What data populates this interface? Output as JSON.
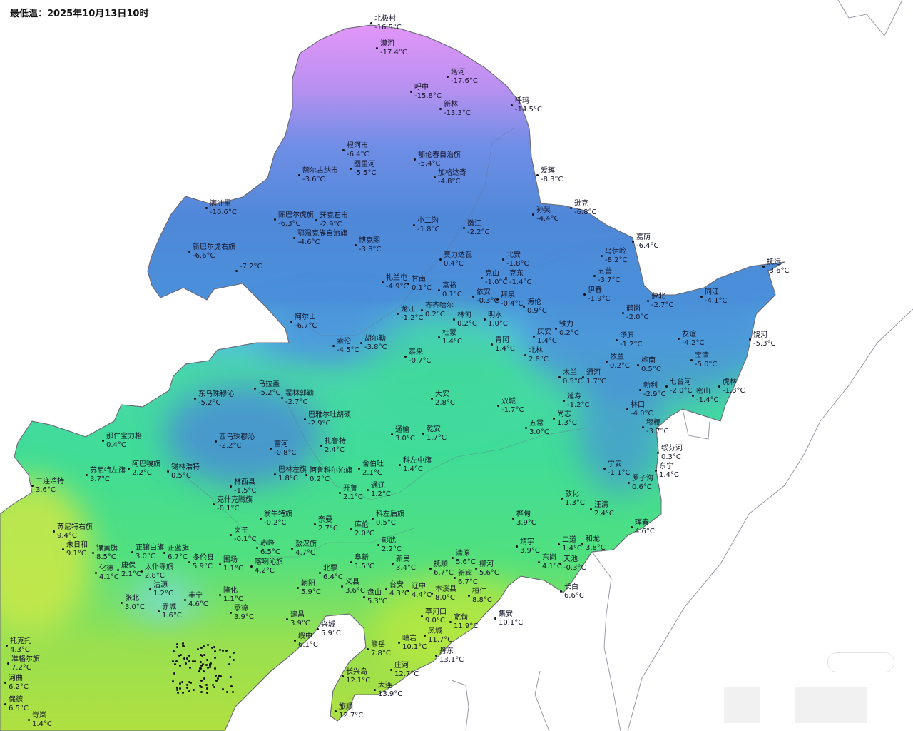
{
  "header": {
    "title": "最低温：2025年10月13日10时"
  },
  "colors": {
    "coldest": "#e496f8",
    "cold": "#4f88d8",
    "near_zero": "#55c8e6",
    "mild": "#40dc98",
    "warm": "#b0e040"
  },
  "stations": [
    {
      "name": "北极村",
      "temp": "-16.5°C"
    },
    {
      "name": "漠河",
      "temp": "-17.4°C"
    },
    {
      "name": "塔河",
      "temp": "-17.6°C"
    },
    {
      "name": "呼中",
      "temp": "-15.8°C"
    },
    {
      "name": "新林",
      "temp": "-13.3°C"
    },
    {
      "name": "呼玛",
      "temp": "-14.5°C"
    },
    {
      "name": "根河市",
      "temp": "-6.4°C"
    },
    {
      "name": "图里河",
      "temp": "-5.5°C"
    },
    {
      "name": "额尔古纳市",
      "temp": "-3.6°C"
    },
    {
      "name": "鄂伦春自治旗",
      "temp": "-5.4°C"
    },
    {
      "name": "加格达奇",
      "temp": "-4.8°C"
    },
    {
      "name": "爱辉",
      "temp": "-8.3°C"
    },
    {
      "name": "满洲里",
      "temp": "-10.6°C"
    },
    {
      "name": "孙吴",
      "temp": "-4.4°C"
    },
    {
      "name": "逊克",
      "temp": "-6.8°C"
    },
    {
      "name": "陈巴尔虎旗",
      "temp": "-6.3°C"
    },
    {
      "name": "牙克石市",
      "temp": "-2.9°C"
    },
    {
      "name": "鄂温克族自治旗",
      "temp": "-4.6°C"
    },
    {
      "name": "小二沟",
      "temp": "-1.8°C"
    },
    {
      "name": "嫩江",
      "temp": "-2.2°C"
    },
    {
      "name": "博克图",
      "temp": "-3.8°C"
    },
    {
      "name": "新巴尔虎右旗",
      "temp": "-6.6°C"
    },
    {
      "name": "",
      "temp": "-7.2°C"
    },
    {
      "name": "嘉荫",
      "temp": "-6.4°C"
    },
    {
      "name": "乌伊岭",
      "temp": "-8.2°C"
    },
    {
      "name": "抚远",
      "temp": "-3.6°C"
    },
    {
      "name": "扎兰屯",
      "temp": "-4.9°C"
    },
    {
      "name": "五营",
      "temp": "-3.7°C"
    },
    {
      "name": "甘南",
      "temp": "0.1°C"
    },
    {
      "name": "莫力达瓦",
      "temp": "0.4°C"
    },
    {
      "name": "北安",
      "temp": "-1.8°C"
    },
    {
      "name": "克山",
      "temp": "-1.0°C"
    },
    {
      "name": "克东",
      "temp": "-1.4°C"
    },
    {
      "name": "富裕",
      "temp": "0.1°C"
    },
    {
      "name": "依安",
      "temp": "-0.3°C"
    },
    {
      "name": "拜泉",
      "temp": "-0.4°C"
    },
    {
      "name": "伊春",
      "temp": "-1.9°C"
    },
    {
      "name": "海伦",
      "temp": "0.9°C"
    },
    {
      "name": "龙江",
      "temp": "-1.2°C"
    },
    {
      "name": "齐齐哈尔",
      "temp": "0.2°C"
    },
    {
      "name": "林甸",
      "temp": "0.2°C"
    },
    {
      "name": "明水",
      "temp": "1.0°C"
    },
    {
      "name": "萝北",
      "temp": "-2.7°C"
    },
    {
      "name": "同江",
      "temp": "-4.1°C"
    },
    {
      "name": "鹤岗",
      "temp": "-2.0°C"
    },
    {
      "name": "铁力",
      "temp": "0.2°C"
    },
    {
      "name": "庆安",
      "temp": "1.4°C"
    },
    {
      "name": "汤原",
      "temp": "-1.2°C"
    },
    {
      "name": "友谊",
      "temp": "-4.2°C"
    },
    {
      "name": "饶河",
      "temp": "-5.3°C"
    },
    {
      "name": "宝清",
      "temp": "-5.0°C"
    },
    {
      "name": "依兰",
      "temp": "0.2°C"
    },
    {
      "name": "桦南",
      "temp": "0.5°C"
    },
    {
      "name": "杜蒙",
      "temp": "1.4°C"
    },
    {
      "name": "胡尔勒",
      "temp": "-3.8°C"
    },
    {
      "name": "索伦",
      "temp": "-4.5°C"
    },
    {
      "name": "泰来",
      "temp": "-0.7°C"
    },
    {
      "name": "青冈",
      "temp": "1.4°C"
    },
    {
      "name": "北林",
      "temp": "2.8°C"
    },
    {
      "name": "阿尔山",
      "temp": "-6.7°C"
    },
    {
      "name": "乌拉盖",
      "temp": "-5.2°C"
    },
    {
      "name": "东乌珠穆沁",
      "temp": "-5.2°C"
    },
    {
      "name": "霍林郭勒",
      "temp": "-2.7°C"
    },
    {
      "name": "木兰",
      "temp": "0.5°C"
    },
    {
      "name": "通河",
      "temp": "1.7°C"
    },
    {
      "name": "延寿",
      "temp": "-1.2°C"
    },
    {
      "name": "尚志",
      "temp": "1.3°C"
    },
    {
      "name": "勃利",
      "temp": "-2.9°C"
    },
    {
      "name": "七台河",
      "temp": "-2.0°C"
    },
    {
      "name": "密山",
      "temp": "-1.4°C"
    },
    {
      "name": "虎林",
      "temp": "-1.8°C"
    },
    {
      "name": "林口",
      "temp": "-4.0°C"
    },
    {
      "name": "穆棱",
      "temp": "-3.7°C"
    },
    {
      "name": "大安",
      "temp": "2.8°C"
    },
    {
      "name": "双城",
      "temp": "-1.7°C"
    },
    {
      "name": "巴雅尔吐胡硕",
      "temp": "-2.9°C"
    },
    {
      "name": "那仁宝力格",
      "temp": "0.4°C"
    },
    {
      "name": "西乌珠穆沁",
      "temp": "-2.2°C"
    },
    {
      "name": "富河",
      "temp": "-0.8°C"
    },
    {
      "name": "扎鲁特",
      "temp": "2.4°C"
    },
    {
      "name": "通榆",
      "temp": "3.0°C"
    },
    {
      "name": "乾安",
      "temp": "1.7°C"
    },
    {
      "name": "五常",
      "temp": "3.0°C"
    },
    {
      "name": "绥芬河",
      "temp": "0.3°C"
    },
    {
      "name": "宁安",
      "temp": "-1.1°C"
    },
    {
      "name": "东宁",
      "temp": "1.4°C"
    },
    {
      "name": "阿巴嘎旗",
      "temp": "2.2°C"
    },
    {
      "name": "锡林浩特",
      "temp": "0.5°C"
    },
    {
      "name": "苏尼特左旗",
      "temp": "3.7°C"
    },
    {
      "name": "二连浩特",
      "temp": "3.6°C"
    },
    {
      "name": "巴林左旗",
      "temp": "1.8°C"
    },
    {
      "name": "阿鲁科尔沁旗",
      "temp": "0.2°C"
    },
    {
      "name": "舍伯吐",
      "temp": "2.1°C"
    },
    {
      "name": "科左中旗",
      "temp": "1.4°C"
    },
    {
      "name": "林西县",
      "temp": "-1.5°C"
    },
    {
      "name": "开鲁",
      "temp": "2.1°C"
    },
    {
      "name": "通辽",
      "temp": "1.2°C"
    },
    {
      "name": "克什克腾旗",
      "temp": "-0.1°C"
    },
    {
      "name": "罗子沟",
      "temp": "0.6°C"
    },
    {
      "name": "敦化",
      "temp": "1.3°C"
    },
    {
      "name": "汪清",
      "temp": "2.4°C"
    },
    {
      "name": "翁牛特旗",
      "temp": "-0.2°C"
    },
    {
      "name": "奈曼",
      "temp": "2.7°C"
    },
    {
      "name": "库伦",
      "temp": "2.0°C"
    },
    {
      "name": "科左后旗",
      "temp": "0.5°C"
    },
    {
      "name": "苏尼特右旗",
      "temp": "9.4°C"
    },
    {
      "name": "朱日和",
      "temp": "9.1°C"
    },
    {
      "name": "桦甸",
      "temp": "3.9°C"
    },
    {
      "name": "珲春",
      "temp": "4.6°C"
    },
    {
      "name": "二道",
      "temp": "1.4°C"
    },
    {
      "name": "和龙",
      "temp": "3.8°C"
    },
    {
      "name": "靖宇",
      "temp": "3.9°C"
    },
    {
      "name": "东岗",
      "temp": "4.1°C"
    },
    {
      "name": "天池",
      "temp": "-0.3°C"
    },
    {
      "name": "长白",
      "temp": "6.6°C"
    },
    {
      "name": "正镶白旗",
      "temp": "3.0°C"
    },
    {
      "name": "镶黄旗",
      "temp": "8.5°C"
    },
    {
      "name": "正蓝旗",
      "temp": "6.7°C"
    },
    {
      "name": "多伦县",
      "temp": "5.9°C"
    },
    {
      "name": "围场",
      "temp": "1.1°C"
    },
    {
      "name": "喀喇沁旗",
      "temp": "4.2°C"
    },
    {
      "name": "敖汉旗",
      "temp": "4.7°C"
    },
    {
      "name": "阜新",
      "temp": "1.5°C"
    },
    {
      "name": "彰武",
      "temp": "2.2°C"
    },
    {
      "name": "新民",
      "temp": "3.4°C"
    },
    {
      "name": "清原",
      "temp": "5.6°C"
    },
    {
      "name": "柳河",
      "temp": "5.6°C"
    },
    {
      "name": "抚顺",
      "temp": "6.7°C"
    },
    {
      "name": "新宾",
      "temp": "6.7°C"
    },
    {
      "name": "北票",
      "temp": "6.4°C"
    },
    {
      "name": "朝阳",
      "temp": "5.9°C"
    },
    {
      "name": "义县",
      "temp": "3.6°C"
    },
    {
      "name": "建昌",
      "temp": "3.9°C"
    },
    {
      "name": "兴城",
      "temp": "5.9°C"
    },
    {
      "name": "绥中",
      "temp": "6.1°C"
    },
    {
      "name": "盘山",
      "temp": "5.3°C"
    },
    {
      "name": "台安",
      "temp": "4.3°C"
    },
    {
      "name": "辽中",
      "temp": "4.4°C"
    },
    {
      "name": "本溪县",
      "temp": "8.0°C"
    },
    {
      "name": "桓仁",
      "temp": "8.8°C"
    },
    {
      "name": "集安",
      "temp": "10.1°C"
    },
    {
      "name": "草河口",
      "temp": "9.0°C"
    },
    {
      "name": "宽甸",
      "temp": "11.9°C"
    },
    {
      "name": "凤城",
      "temp": "11.7°C"
    },
    {
      "name": "岫岩",
      "temp": "10.1°C"
    },
    {
      "name": "熊岳",
      "temp": "7.8°C"
    },
    {
      "name": "丹东",
      "temp": "13.1°C"
    },
    {
      "name": "庄河",
      "temp": "12.7°C"
    },
    {
      "name": "长兴岛",
      "temp": "12.1°C"
    },
    {
      "name": "旅顺",
      "temp": "12.7°C"
    },
    {
      "name": "大连",
      "temp": "13.9°C"
    },
    {
      "name": "张北",
      "temp": "3.0°C"
    },
    {
      "name": "丰宁",
      "temp": "4.6°C"
    },
    {
      "name": "隆化",
      "temp": "1.1°C"
    },
    {
      "name": "承德",
      "temp": "3.9°C"
    },
    {
      "name": "赤城",
      "temp": "1.6°C"
    },
    {
      "name": "康保",
      "temp": "2.1°C"
    },
    {
      "name": "太仆寺旗",
      "temp": "2.8°C"
    },
    {
      "name": "化德",
      "temp": "4.1°C"
    },
    {
      "name": "沽源",
      "temp": "1.2°C"
    },
    {
      "name": "托克托",
      "temp": "4.3°C"
    },
    {
      "name": "准格尔旗",
      "temp": "7.2°C"
    },
    {
      "name": "河曲",
      "temp": "6.2°C"
    },
    {
      "name": "保德",
      "temp": "6.5°C"
    },
    {
      "name": "岢岚",
      "temp": "1.4°C"
    },
    {
      "name": "赤峰",
      "temp": "6.5°C"
    },
    {
      "name": "岗子",
      "temp": "-0.1°C"
    }
  ]
}
